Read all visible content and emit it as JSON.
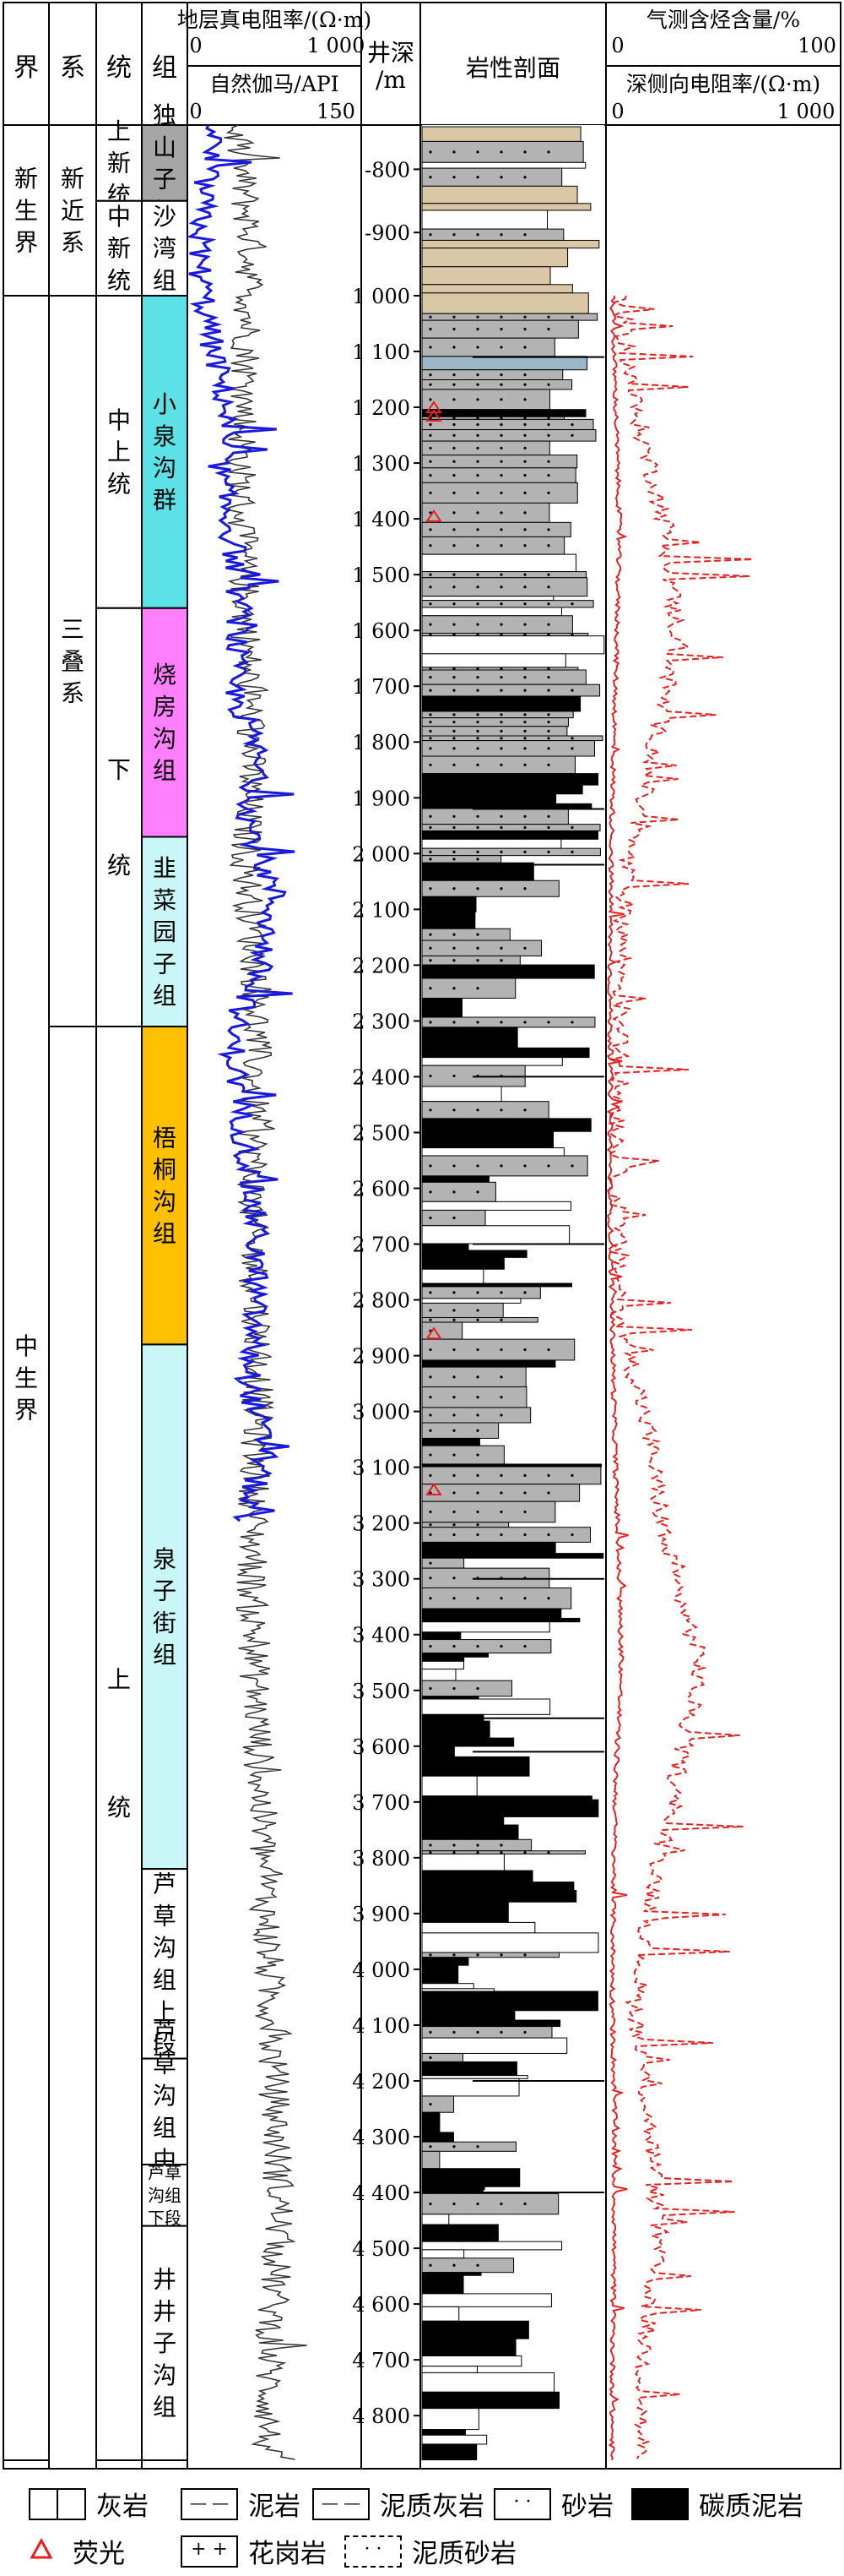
{
  "header": {
    "col_jie": "界",
    "col_xi": "系",
    "col_tong": "统",
    "col_zu": "组",
    "track1_top_label": "地层真电阻率/(Ω·m)",
    "track1_top_min": "0",
    "track1_top_max": "1 000",
    "track1_bottom_label": "自然伽马/API",
    "track1_bottom_min": "0",
    "track1_bottom_max": "150",
    "depth_label_1": "井深",
    "depth_label_2": "/m",
    "lith_label": "岩性剖面",
    "track3_top_label": "气测含烃含量/%",
    "track3_top_min": "0",
    "track3_top_max": "100",
    "track3_bottom_label": "深侧向电阻率/(Ω·m)",
    "track3_bottom_min": "0",
    "track3_bottom_max": "1 000"
  },
  "strata": {
    "jie": [
      {
        "text": "新\n生\n界",
        "from": -730,
        "to": -1000
      },
      {
        "text": "中\n生\n界",
        "from": -1000,
        "to": 4880
      }
    ],
    "xi": [
      {
        "text": "新\n近\n系",
        "from": -730,
        "to": -1000
      },
      {
        "text": "三\n叠\n系",
        "from": -1000,
        "to": 2310
      }
    ],
    "tong": [
      {
        "text": "上\n新\n统",
        "from": -730,
        "to": -850
      },
      {
        "text": "中\n新\n统",
        "from": -850,
        "to": -1000
      },
      {
        "text": "中\n上\n统",
        "from": 1000,
        "to": 1560
      },
      {
        "text": "下\n\n\n统",
        "from": 1560,
        "to": 2310
      },
      {
        "text": "上\n\n\n\n统",
        "from": 2310,
        "to": 4880
      }
    ],
    "zu": [
      {
        "text": "独\n山\n子\n组",
        "from": -730,
        "to": -850,
        "fill": "#a6a6a6"
      },
      {
        "text": "沙\n湾\n组",
        "from": -850,
        "to": -1000,
        "fill": "#ffffff"
      },
      {
        "text": "小\n泉\n沟\n群",
        "from": 1000,
        "to": 1560,
        "fill": "#5ce1e6"
      },
      {
        "text": "烧\n房\n沟\n组",
        "from": 1560,
        "to": 1970,
        "fill": "#ff80ff"
      },
      {
        "text": "韭\n菜\n园\n子\n组",
        "from": 1970,
        "to": 2310,
        "fill": "#c9f6f6"
      },
      {
        "text": "梧\n桐\n沟\n组",
        "from": 2310,
        "to": 2880,
        "fill": "#ffc000"
      },
      {
        "text": "泉\n子\n街\n组",
        "from": 2880,
        "to": 3820,
        "fill": "#c9f6f6"
      },
      {
        "text": "芦\n草\n沟\n组\n上\n段",
        "from": 3820,
        "to": 4160,
        "fill": "#ffffff"
      },
      {
        "text": "芦\n草\n沟\n组\n中\n段",
        "from": 4160,
        "to": 4350,
        "fill": "#ffffff"
      },
      {
        "text": "芦草\n沟组\n下段",
        "from": 4350,
        "to": 4460,
        "fill": "#ffffff"
      },
      {
        "text": "井\n井\n子\n沟\n组",
        "from": 4460,
        "to": 4880,
        "fill": "#ffffff"
      }
    ]
  },
  "chart_data": {
    "type": "line",
    "depth_ticks": [
      "-800",
      "-900",
      "1 000",
      "1 100",
      "1 200",
      "1 300",
      "1 400",
      "1 500",
      "1 600",
      "1 700",
      "1 800",
      "1 900",
      "2 000",
      "2 100",
      "2 200",
      "2 300",
      "2 400",
      "2 500",
      "2 600",
      "2 700",
      "2 800",
      "2 900",
      "3 000",
      "3 100",
      "3 200",
      "3 300",
      "3 400",
      "3 500",
      "3 600",
      "3 700",
      "3 800",
      "3 900",
      "4 000",
      "4 100",
      "4 200",
      "4 300",
      "4 400",
      "4 500",
      "4 600",
      "4 700",
      "4 800"
    ],
    "series": [
      {
        "name": "地层真电阻率",
        "unit": "Ω·m",
        "range": [
          0,
          1000
        ],
        "color": "#1a1adc",
        "depth_range": [
          -730,
          3200
        ],
        "typical_values": [
          150,
          80,
          60,
          120,
          220,
          180,
          260,
          300,
          250,
          400,
          350,
          500,
          420,
          250,
          300,
          350,
          400,
          380,
          350,
          450,
          300
        ]
      },
      {
        "name": "自然伽马",
        "unit": "API",
        "range": [
          0,
          150
        ],
        "color": "#333333",
        "depth_range": [
          -730,
          4880
        ],
        "typical_values": [
          40,
          55,
          50,
          45,
          50,
          55,
          50,
          60,
          58,
          55,
          62,
          58,
          55,
          60,
          65,
          70,
          75,
          80,
          72,
          68
        ]
      },
      {
        "name": "气测含烃含量",
        "unit": "%",
        "range": [
          0,
          100
        ],
        "color": "#e62020",
        "depth_range": [
          1000,
          4880
        ],
        "typical_values": [
          5,
          12,
          25,
          30,
          20,
          8,
          6,
          5,
          4,
          6,
          18,
          25,
          40,
          30,
          20,
          12,
          18,
          22,
          16,
          14
        ]
      },
      {
        "name": "深侧向电阻率",
        "unit": "Ω·m",
        "range": [
          0,
          1000
        ],
        "color": "#e62020",
        "depth_range": [
          1000,
          4880
        ],
        "typical_values": [
          20,
          35,
          50,
          40,
          25,
          15,
          10,
          12,
          10,
          20,
          30,
          45,
          60,
          35,
          25,
          20,
          30,
          28,
          22,
          18
        ]
      }
    ]
  },
  "legend": {
    "items": [
      {
        "label": "灰岩",
        "symbol": "limestone"
      },
      {
        "label": "泥岩",
        "symbol": "mudstone"
      },
      {
        "label": "泥质灰岩",
        "symbol": "argillaceous-limestone"
      },
      {
        "label": "砂岩",
        "symbol": "sandstone"
      },
      {
        "label": "碳质泥岩",
        "symbol": "carbonaceous-mudstone"
      },
      {
        "label": "荧光",
        "symbol": "fluorescence"
      },
      {
        "label": "花岗岩",
        "symbol": "granite"
      },
      {
        "label": "泥质砂岩",
        "symbol": "argillaceous-sandstone"
      }
    ]
  },
  "colors": {
    "resistivity_blue": "#1a1adc",
    "gamma_black": "#333333",
    "gas_red": "#e62020",
    "fluorescence_red": "#e62020",
    "lith_gray": "#b3b3b3",
    "lith_purple": "#cf7ce6",
    "lith_teal": "#9cb8c8",
    "lith_tan": "#d9c7a6"
  }
}
